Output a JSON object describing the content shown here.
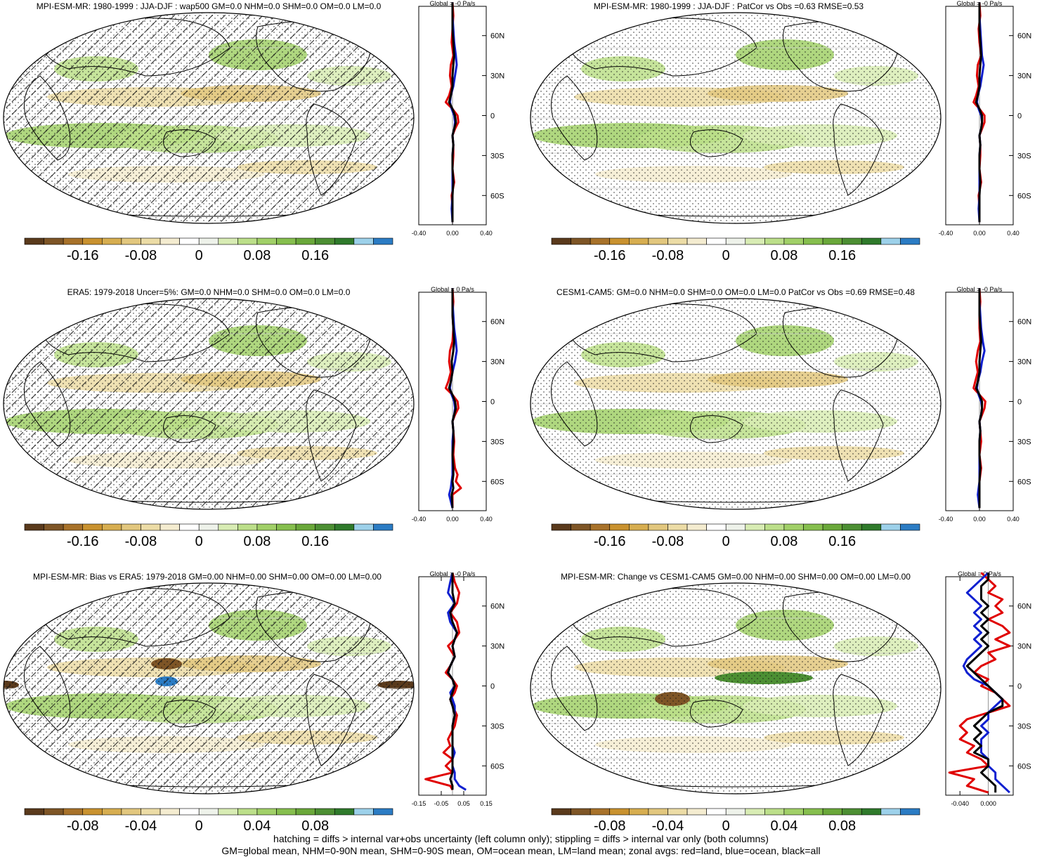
{
  "figure": {
    "footnote_line1": "hatching = diffs > internal var+obs uncertainty (left column only); stippling = diffs > internal var only (both columns)",
    "footnote_line2": "GM=global mean, NHM=0-90N mean, SHM=0-90S mean, OM=ocean mean, LM=land mean; zonal avgs: red=land, blue=ocean, black=all"
  },
  "colorbar_colors": [
    "#5a3a1c",
    "#7e5526",
    "#a8722a",
    "#c9922f",
    "#d7ae50",
    "#e2c77e",
    "#ecdca6",
    "#f4ecd0",
    "#ffffff",
    "#eef2ea",
    "#d8ecb4",
    "#bcdf8a",
    "#a1d068",
    "#86bf4e",
    "#6aa83a",
    "#4c8f33",
    "#2f7a2b",
    "#9dd1ea",
    "#2b7cc4"
  ],
  "chart_data": [
    {
      "type": "map",
      "title": "MPI-ESM-MR: 1980-1999 : JJA-DJF : wap500 GM=0.0 NHM=0.0 SHM=0.0 OM=0.0 LM=0.0",
      "colorbar_ticks": [
        "-0.16",
        "-0.08",
        "0",
        "0.08",
        "0.16"
      ],
      "hatching": true,
      "zonal": {
        "title": "Global = -0 Pa/s",
        "xticks": [
          "-0.40",
          "0.00",
          "0.40"
        ],
        "xlim": [
          -0.4,
          0.4
        ],
        "yticks": [
          "60N",
          "30N",
          "0",
          "30S",
          "60S"
        ],
        "lat": [
          85,
          75,
          65,
          55,
          45,
          38,
          30,
          22,
          15,
          10,
          5,
          0,
          -5,
          -10,
          -15,
          -22,
          -30,
          -40,
          -50,
          -60,
          -70,
          -80
        ],
        "series": [
          {
            "color": "#e00000",
            "values": [
              0.0,
              0.01,
              0.0,
              -0.01,
              0.01,
              -0.02,
              -0.03,
              -0.01,
              -0.04,
              -0.08,
              0.0,
              0.06,
              0.07,
              0.03,
              0.0,
              0.01,
              0.01,
              0.0,
              0.02,
              -0.01,
              0.0,
              0.0
            ]
          },
          {
            "color": "#1020d0",
            "values": [
              0.0,
              0.0,
              0.01,
              0.02,
              0.04,
              0.05,
              0.03,
              0.01,
              -0.02,
              -0.03,
              -0.01,
              0.02,
              0.03,
              0.02,
              0.0,
              0.01,
              0.0,
              0.0,
              0.0,
              0.0,
              -0.01,
              0.0
            ]
          },
          {
            "color": "#000000",
            "values": [
              0.0,
              0.0,
              0.0,
              0.01,
              0.02,
              0.01,
              0.0,
              0.0,
              -0.02,
              -0.04,
              0.0,
              0.03,
              0.04,
              0.02,
              0.0,
              0.01,
              0.0,
              0.0,
              0.01,
              0.0,
              0.0,
              0.0
            ]
          }
        ]
      }
    },
    {
      "type": "map",
      "title": "MPI-ESM-MR: 1980-1999 : JJA-DJF : PatCor vs Obs =0.63 RMSE=0.53",
      "colorbar_ticks": [
        "-0.16",
        "-0.08",
        "0",
        "0.08",
        "0.16"
      ],
      "hatching": false,
      "zonal": {
        "title": "Global = -0 Pa/s",
        "xticks": [
          "-0.40",
          "0.00",
          "0.40"
        ],
        "xlim": [
          -0.4,
          0.4
        ],
        "yticks": [
          "60N",
          "30N",
          "0",
          "30S",
          "60S"
        ],
        "lat": [
          85,
          75,
          65,
          55,
          45,
          38,
          30,
          22,
          15,
          10,
          5,
          0,
          -5,
          -10,
          -15,
          -22,
          -30,
          -40,
          -50,
          -60,
          -70,
          -80
        ],
        "series": [
          {
            "color": "#e00000",
            "values": [
              0.0,
              0.01,
              -0.01,
              0.0,
              0.02,
              -0.02,
              -0.03,
              -0.01,
              -0.04,
              -0.07,
              0.0,
              0.06,
              0.06,
              0.03,
              0.0,
              0.01,
              0.01,
              0.0,
              0.02,
              -0.01,
              0.0,
              0.0
            ]
          },
          {
            "color": "#1020d0",
            "values": [
              0.0,
              0.0,
              0.01,
              0.02,
              0.03,
              0.05,
              0.03,
              0.01,
              -0.02,
              -0.03,
              -0.01,
              0.02,
              0.03,
              0.02,
              0.0,
              0.01,
              0.0,
              0.0,
              0.0,
              0.0,
              -0.01,
              0.0
            ]
          },
          {
            "color": "#000000",
            "values": [
              0.0,
              0.0,
              0.0,
              0.01,
              0.02,
              0.01,
              0.0,
              0.0,
              -0.02,
              -0.04,
              0.0,
              0.03,
              0.03,
              0.02,
              0.0,
              0.01,
              0.0,
              0.0,
              0.01,
              0.0,
              0.0,
              0.0
            ]
          }
        ]
      }
    },
    {
      "type": "map",
      "title": "ERA5: 1979-2018 Uncer=5%: GM=0.0 NHM=0.0 SHM=0.0 OM=0.0 LM=0.0",
      "colorbar_ticks": [
        "-0.16",
        "-0.08",
        "0",
        "0.08",
        "0.16"
      ],
      "hatching": true,
      "zonal": {
        "title": "Global = 0 Pa/s",
        "xticks": [
          "-0.40",
          "0.00",
          "0.40"
        ],
        "xlim": [
          -0.4,
          0.4
        ],
        "yticks": [
          "60N",
          "30N",
          "0",
          "30S",
          "60S"
        ],
        "lat": [
          85,
          75,
          65,
          55,
          45,
          38,
          30,
          22,
          15,
          10,
          5,
          0,
          -5,
          -10,
          -15,
          -22,
          -30,
          -40,
          -50,
          -55,
          -60,
          -65,
          -70,
          -80
        ],
        "series": [
          {
            "color": "#e00000",
            "values": [
              0.0,
              0.01,
              0.0,
              0.01,
              0.0,
              -0.03,
              -0.04,
              -0.02,
              -0.05,
              -0.08,
              0.0,
              0.06,
              0.07,
              0.03,
              0.0,
              0.01,
              0.02,
              0.01,
              0.03,
              0.06,
              0.04,
              0.1,
              0.0,
              0.0
            ]
          },
          {
            "color": "#1020d0",
            "values": [
              0.0,
              0.0,
              0.01,
              0.02,
              0.04,
              0.05,
              0.03,
              0.0,
              -0.02,
              -0.03,
              -0.01,
              0.02,
              0.03,
              0.02,
              0.0,
              0.01,
              0.0,
              0.0,
              0.0,
              0.0,
              -0.01,
              -0.02,
              -0.04,
              0.0
            ]
          },
          {
            "color": "#000000",
            "values": [
              0.0,
              0.0,
              0.0,
              0.01,
              0.02,
              0.01,
              -0.01,
              0.0,
              -0.02,
              -0.04,
              0.0,
              0.03,
              0.04,
              0.02,
              0.0,
              0.01,
              0.01,
              0.0,
              0.01,
              0.01,
              0.0,
              0.01,
              -0.01,
              0.0
            ]
          }
        ]
      }
    },
    {
      "type": "map",
      "title": "CESM1-CAM5: GM=0.0 NHM=0.0 SHM=0.0 OM=0.0 LM=0.0 PatCor vs Obs =0.69 RMSE=0.48",
      "colorbar_ticks": [
        "-0.16",
        "-0.08",
        "0",
        "0.08",
        "0.16"
      ],
      "hatching": false,
      "zonal": {
        "title": "Global = -0 Pa/s",
        "xticks": [
          "-0.40",
          "0.00",
          "0.40"
        ],
        "xlim": [
          -0.4,
          0.4
        ],
        "yticks": [
          "60N",
          "30N",
          "0",
          "30S",
          "60S"
        ],
        "lat": [
          85,
          75,
          65,
          55,
          45,
          38,
          30,
          22,
          15,
          10,
          5,
          0,
          -5,
          -10,
          -15,
          -22,
          -30,
          -40,
          -50,
          -60,
          -70,
          -80
        ],
        "series": [
          {
            "color": "#e00000",
            "values": [
              0.0,
              0.01,
              0.0,
              0.0,
              0.01,
              -0.02,
              -0.04,
              -0.02,
              -0.05,
              -0.07,
              0.0,
              0.07,
              0.06,
              0.03,
              0.0,
              0.01,
              0.02,
              0.0,
              0.02,
              0.0,
              0.0,
              0.0
            ]
          },
          {
            "color": "#1020d0",
            "values": [
              0.0,
              0.0,
              0.01,
              0.02,
              0.04,
              0.06,
              0.03,
              0.01,
              -0.02,
              -0.03,
              -0.01,
              0.02,
              0.03,
              0.02,
              0.0,
              0.01,
              0.0,
              0.0,
              0.0,
              0.0,
              -0.02,
              0.0
            ]
          },
          {
            "color": "#000000",
            "values": [
              0.0,
              0.0,
              0.0,
              0.01,
              0.02,
              0.01,
              0.0,
              0.0,
              -0.02,
              -0.04,
              0.0,
              0.03,
              0.03,
              0.02,
              0.0,
              0.01,
              0.0,
              0.0,
              0.01,
              0.0,
              0.0,
              0.0
            ]
          }
        ]
      }
    },
    {
      "type": "map",
      "title": "MPI-ESM-MR: Bias vs ERA5: 1979-2018 GM=0.00 NHM=0.00 SHM=0.00 OM=0.00 LM=0.00",
      "colorbar_ticks": [
        "-0.08",
        "-0.04",
        "0",
        "0.04",
        "0.08"
      ],
      "hatching": true,
      "zonal": {
        "title": "Global = -0 Pa/s",
        "xticks": [
          "-0.15",
          "-0.05",
          "0.05",
          "0.15"
        ],
        "xlim": [
          -0.15,
          0.15
        ],
        "yticks": [
          "60N",
          "30N",
          "0",
          "30S",
          "60S"
        ],
        "lat": [
          85,
          78,
          70,
          62,
          55,
          48,
          40,
          35,
          30,
          22,
          15,
          10,
          5,
          0,
          -5,
          -10,
          -15,
          -22,
          -30,
          -40,
          -45,
          -50,
          -55,
          -60,
          -65,
          -70,
          -75,
          -78
        ],
        "series": [
          {
            "color": "#e00000",
            "values": [
              0.0,
              0.01,
              0.03,
              0.02,
              -0.01,
              0.02,
              0.03,
              0.01,
              -0.02,
              0.01,
              -0.01,
              -0.03,
              0.0,
              0.02,
              0.01,
              -0.01,
              0.0,
              0.02,
              0.01,
              -0.02,
              -0.01,
              -0.04,
              0.0,
              -0.03,
              0.0,
              -0.12,
              -0.01,
              0.0
            ]
          },
          {
            "color": "#1020d0",
            "values": [
              0.0,
              -0.01,
              -0.02,
              0.01,
              -0.02,
              -0.01,
              0.02,
              0.01,
              0.0,
              0.01,
              -0.01,
              -0.02,
              0.0,
              0.01,
              -0.01,
              0.0,
              0.01,
              0.01,
              0.0,
              0.0,
              0.0,
              0.01,
              0.0,
              0.0,
              0.01,
              0.01,
              0.03,
              0.06
            ]
          },
          {
            "color": "#000000",
            "values": [
              0.0,
              0.0,
              0.0,
              0.01,
              -0.01,
              0.0,
              0.02,
              0.01,
              0.0,
              0.01,
              -0.01,
              -0.02,
              0.0,
              0.01,
              0.0,
              -0.01,
              0.0,
              0.01,
              0.0,
              0.0,
              0.0,
              0.0,
              0.0,
              0.0,
              0.0,
              -0.01,
              0.0,
              0.0
            ]
          }
        ]
      }
    },
    {
      "type": "map",
      "title": "MPI-ESM-MR: Change vs CESM1-CAM5 GM=0.00 NHM=0.00 SHM=0.00 OM=0.00 LM=0.00",
      "colorbar_ticks": [
        "-0.08",
        "-0.04",
        "0",
        "0.04",
        "0.08"
      ],
      "hatching": false,
      "zonal": {
        "title": "Global = 0 Pa/s",
        "xticks": [
          "-0.040",
          "0.000"
        ],
        "xlim": [
          -0.06,
          0.035
        ],
        "yticks": [
          "60N",
          "30N",
          "0",
          "30S",
          "60S"
        ],
        "lat": [
          85,
          80,
          75,
          70,
          65,
          60,
          55,
          50,
          45,
          40,
          35,
          30,
          25,
          20,
          15,
          10,
          5,
          0,
          -5,
          -10,
          -15,
          -20,
          -25,
          -30,
          -35,
          -40,
          -45,
          -50,
          -55,
          -60,
          -65,
          -70,
          -75,
          -80
        ],
        "series": [
          {
            "color": "#e00000",
            "values": [
              -0.01,
              0.0,
              0.01,
              0.0,
              0.02,
              0.01,
              0.02,
              0.0,
              0.02,
              0.03,
              0.01,
              0.03,
              0.0,
              0.01,
              -0.01,
              -0.02,
              0.0,
              -0.01,
              0.01,
              0.02,
              0.03,
              0.0,
              -0.03,
              -0.04,
              -0.03,
              -0.04,
              -0.02,
              -0.03,
              -0.01,
              0.0,
              -0.055,
              -0.02,
              -0.03,
              0.0
            ]
          },
          {
            "color": "#1020d0",
            "values": [
              0.0,
              -0.01,
              -0.02,
              -0.03,
              -0.02,
              -0.01,
              -0.02,
              -0.01,
              -0.02,
              -0.01,
              -0.02,
              -0.01,
              -0.02,
              -0.03,
              -0.035,
              -0.03,
              -0.02,
              0.0,
              0.01,
              0.02,
              0.01,
              0.0,
              0.0,
              -0.01,
              0.0,
              -0.01,
              -0.01,
              -0.01,
              0.0,
              0.0,
              0.01,
              0.01,
              0.02,
              0.03
            ]
          },
          {
            "color": "#000000",
            "values": [
              0.0,
              0.0,
              -0.01,
              -0.01,
              -0.01,
              0.0,
              -0.01,
              0.0,
              -0.01,
              0.0,
              -0.01,
              0.0,
              -0.01,
              -0.02,
              -0.03,
              -0.02,
              -0.01,
              0.0,
              0.01,
              0.02,
              0.02,
              0.0,
              -0.01,
              -0.02,
              -0.01,
              -0.02,
              -0.01,
              -0.02,
              0.0,
              0.0,
              -0.01,
              0.0,
              0.01,
              0.01
            ]
          }
        ]
      }
    }
  ]
}
